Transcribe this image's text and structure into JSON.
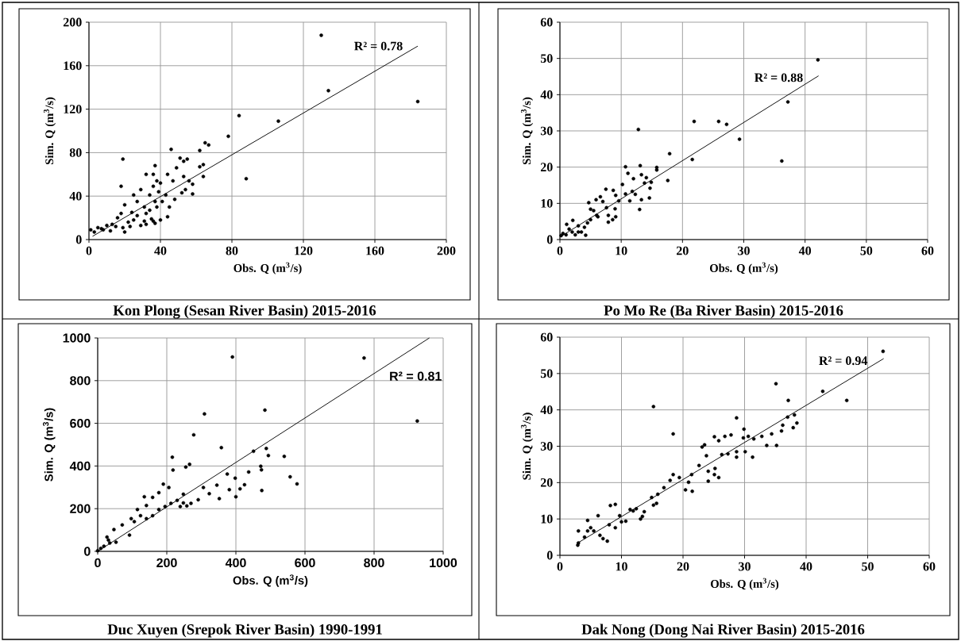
{
  "chart_data": [
    {
      "type": "scatter",
      "title": "Kon Plong (Sesan River Basin) 2015-2016",
      "xlabel": "Obs. Q (m$^{3}$/s)",
      "ylabel": "Sim. Q (m$^{3}$/s)",
      "xlim": [
        0,
        200
      ],
      "ylim": [
        0,
        200
      ],
      "xticks": [
        0,
        40,
        80,
        120,
        160,
        200
      ],
      "yticks": [
        0,
        40,
        80,
        120,
        160,
        200
      ],
      "grid": true,
      "marker": "circle",
      "line_style": "solid",
      "annotations": [
        "R² = 0.78"
      ],
      "series": [
        {
          "color": "#000000",
          "x": [
            130,
            134,
            184,
            84,
            106,
            78,
            88,
            65,
            67,
            46,
            19,
            18,
            62,
            51,
            55,
            53,
            64,
            62,
            37,
            49,
            32,
            36,
            44,
            53,
            64,
            56,
            58,
            47,
            40,
            38,
            58,
            52,
            54,
            44,
            40,
            37,
            48,
            45,
            1,
            3,
            7,
            10,
            13,
            12,
            16,
            19,
            20,
            22,
            18,
            24,
            20,
            25,
            27,
            29,
            31,
            32,
            34,
            36,
            37,
            39,
            34,
            25,
            29,
            31,
            35,
            32,
            36,
            43,
            41,
            38,
            5,
            8,
            15,
            23,
            27
          ],
          "values": [
            188,
            137,
            127,
            114,
            109,
            95,
            56,
            89,
            87,
            83,
            74,
            49,
            82,
            75,
            74,
            72,
            69,
            67,
            68,
            66,
            60,
            60,
            60,
            58,
            58,
            54,
            51,
            54,
            52,
            54,
            42,
            43,
            46,
            21,
            18,
            15,
            37,
            30,
            9,
            7,
            10,
            13,
            14,
            8,
            20,
            11,
            7,
            16,
            24,
            25,
            32,
            41,
            35,
            46,
            30,
            24,
            41,
            49,
            35,
            44,
            27,
            18,
            13,
            17,
            19,
            14,
            17,
            41,
            35,
            30,
            11,
            9,
            12,
            12,
            22
          ]
        },
        {
          "type": "line",
          "marker": "none",
          "color": "#000000",
          "x": [
            2,
            184
          ],
          "values": [
            3,
            178
          ]
        }
      ]
    },
    {
      "type": "scatter",
      "title": "Po Mo Re (Ba River Basin) 2015-2016",
      "xlabel": "Obs. Q (m$^{3}$/s)",
      "ylabel": "Sim. Q (m$^{3}$/s)",
      "xlim": [
        0,
        60
      ],
      "ylim": [
        0,
        60
      ],
      "xticks": [
        0,
        10,
        20,
        30,
        40,
        50,
        60
      ],
      "yticks": [
        0,
        10,
        20,
        30,
        40,
        50,
        60
      ],
      "grid": true,
      "marker": "circle",
      "line_style": "solid",
      "annotations": [
        "R² = 0.88"
      ],
      "series": [
        {
          "color": "#000000",
          "x": [
            42.1,
            37.2,
            21.9,
            25.9,
            27.2,
            12.8,
            29.3,
            36.2,
            21.6,
            17.9,
            17.6,
            10.7,
            13.1,
            15.8,
            15.8,
            10.2,
            11.1,
            12.0,
            13.3,
            14.1,
            13.8,
            14.9,
            14.7,
            11.8,
            12.3,
            10.7,
            11.4,
            13.3,
            14.6,
            13.0,
            9.6,
            7.5,
            8.7,
            9.1,
            9.0,
            9.1,
            8.6,
            7.9,
            7.9,
            7.6,
            7.0,
            6.6,
            5.9,
            4.7,
            5.5,
            5.0,
            6.2,
            4.5,
            4.0,
            4.2,
            3.0,
            2.1,
            1.1,
            2.0,
            1.0,
            0.2,
            0.5,
            2.5,
            3.5,
            1.5,
            5.0,
            6.0,
            3.0
          ],
          "values": [
            49.6,
            38.0,
            32.6,
            32.6,
            31.8,
            30.4,
            27.7,
            21.7,
            22.1,
            23.7,
            16.3,
            20.1,
            20.4,
            19.9,
            19.2,
            15.2,
            18.3,
            16.8,
            17.9,
            17.1,
            15.6,
            15.8,
            14.2,
            13.3,
            12.5,
            12.6,
            10.7,
            11.0,
            11.5,
            8.3,
            10.7,
            13.9,
            13.6,
            12.2,
            8.5,
            6.3,
            5.5,
            4.8,
            6.7,
            8.8,
            10.5,
            11.8,
            11.0,
            10.2,
            8.0,
            8.4,
            6.3,
            4.6,
            3.4,
            1.2,
            3.8,
            5.3,
            4.2,
            2.1,
            1.3,
            1.1,
            1.7,
            1.3,
            2.1,
            2.9,
            5.5,
            6.7,
            2.1
          ]
        },
        {
          "type": "line",
          "marker": "none",
          "color": "#000000",
          "x": [
            0.1,
            42.2
          ],
          "values": [
            0.8,
            45.2
          ]
        }
      ]
    },
    {
      "type": "scatter",
      "title": "Duc Xuyen (Srepok River Basin) 1990-1991",
      "xlabel": "Obs. Q (m$^{3}$/s)",
      "ylabel": "Sim. Q (m$^{3}$/s)",
      "xlim": [
        0,
        1000
      ],
      "ylim": [
        0,
        1000
      ],
      "xticks": [
        0,
        200,
        400,
        600,
        800,
        1000
      ],
      "yticks": [
        0,
        200,
        400,
        600,
        800,
        1000
      ],
      "grid": true,
      "marker": "circle",
      "line_style": "solid",
      "annotations": [
        "R² = 0.81"
      ],
      "series": [
        {
          "color": "#000000",
          "x": [
            390,
            771,
            925,
            484,
            309,
            278,
            358,
            216,
            266,
            255,
            218,
            451,
            488,
            494,
            540,
            472,
            474,
            557,
            577,
            475,
            437,
            425,
            412,
            375,
            398,
            381,
            400,
            352,
            345,
            323,
            306,
            291,
            270,
            258,
            190,
            206,
            177,
            159,
            135,
            141,
            115,
            97,
            71,
            47,
            92,
            53,
            18,
            9,
            0,
            31,
            124,
            159,
            195,
            230,
            248,
            239,
            212,
            177,
            141,
            106,
            35,
            27,
            248
          ],
          "values": [
            911,
            906,
            611,
            662,
            644,
            546,
            486,
            441,
            408,
            395,
            381,
            469,
            482,
            449,
            445,
            399,
            382,
            349,
            316,
            285,
            372,
            312,
            293,
            362,
            343,
            289,
            256,
            247,
            310,
            270,
            299,
            242,
            225,
            213,
            315,
            299,
            275,
            253,
            256,
            215,
            196,
            153,
            124,
            102,
            76,
            43,
            24,
            14,
            3,
            53,
            167,
            167,
            210,
            239,
            227,
            210,
            225,
            196,
            153,
            139,
            39,
            67,
            268
          ]
        },
        {
          "type": "line",
          "marker": "none",
          "color": "#000000",
          "x": [
            0,
            960
          ],
          "values": [
            0,
            1000
          ]
        }
      ]
    },
    {
      "type": "scatter",
      "title": "Dak Nong (Dong Nai River Basin) 2015-2016",
      "xlabel": "Obs. Q (m$^{3}$/s)",
      "ylabel": "Sim. Q (m$^{3}$/s)",
      "xlim": [
        0,
        60
      ],
      "ylim": [
        0,
        60
      ],
      "xticks": [
        0,
        10,
        20,
        30,
        40,
        50,
        60
      ],
      "yticks": [
        0,
        10,
        20,
        30,
        40,
        50,
        60
      ],
      "grid": true,
      "marker": "circle",
      "line_style": "solid",
      "annotations": [
        "R² = 0.94"
      ],
      "series": [
        {
          "color": "#000000",
          "x": [
            52.5,
            35.1,
            37.1,
            46.6,
            42.7,
            15.2,
            18.4,
            28.7,
            37.0,
            38.1,
            38.5,
            37.9,
            36.2,
            36.0,
            34.4,
            35.2,
            33.6,
            32.8,
            31.5,
            31.3,
            30.6,
            29.9,
            30.1,
            28.7,
            28.7,
            27.8,
            26.8,
            25.8,
            25.1,
            26.3,
            27.3,
            23.1,
            23.5,
            25.8,
            25.2,
            24.1,
            25.1,
            24.1,
            23.8,
            22.6,
            21.5,
            20.4,
            20.9,
            21.4,
            19.4,
            18.4,
            16.9,
            15.9,
            14.9,
            15.2,
            15.7,
            13.7,
            13.4,
            13.1,
            12.4,
            11.4,
            10.7,
            9.7,
            9.0,
            8.2,
            9.0,
            8.0,
            7.7,
            7.0,
            6.5,
            6.2,
            5.5,
            4.5,
            4.5,
            4.0,
            3.0,
            3.0,
            2.9,
            5.0,
            10.0,
            11.9,
            17.9,
            29.8
          ],
          "values": [
            56.1,
            47.2,
            42.6,
            42.6,
            45.1,
            40.9,
            33.4,
            37.8,
            38.0,
            38.6,
            36.4,
            35.1,
            35.8,
            34.2,
            33.4,
            30.2,
            30.2,
            32.7,
            32.0,
            27.0,
            32.7,
            34.7,
            28.5,
            28.5,
            27.0,
            33.1,
            32.7,
            31.5,
            32.6,
            27.7,
            27.9,
            29.8,
            30.4,
            21.4,
            23.9,
            20.4,
            22.2,
            23.1,
            27.4,
            24.7,
            17.6,
            18.0,
            20.1,
            22.2,
            21.4,
            22.2,
            18.6,
            16.8,
            15.9,
            13.8,
            14.3,
            12.0,
            10.7,
            10.0,
            12.8,
            12.6,
            9.4,
            10.9,
            14.0,
            13.7,
            7.6,
            8.4,
            3.9,
            4.6,
            5.5,
            10.9,
            6.7,
            9.6,
            6.7,
            5.0,
            6.7,
            3.4,
            2.8,
            7.6,
            9.2,
            12.2,
            20.6,
            32.3
          ]
        },
        {
          "type": "line",
          "marker": "none",
          "color": "#000000",
          "x": [
            2.8,
            52.6
          ],
          "values": [
            3.3,
            54.1
          ]
        }
      ]
    }
  ]
}
